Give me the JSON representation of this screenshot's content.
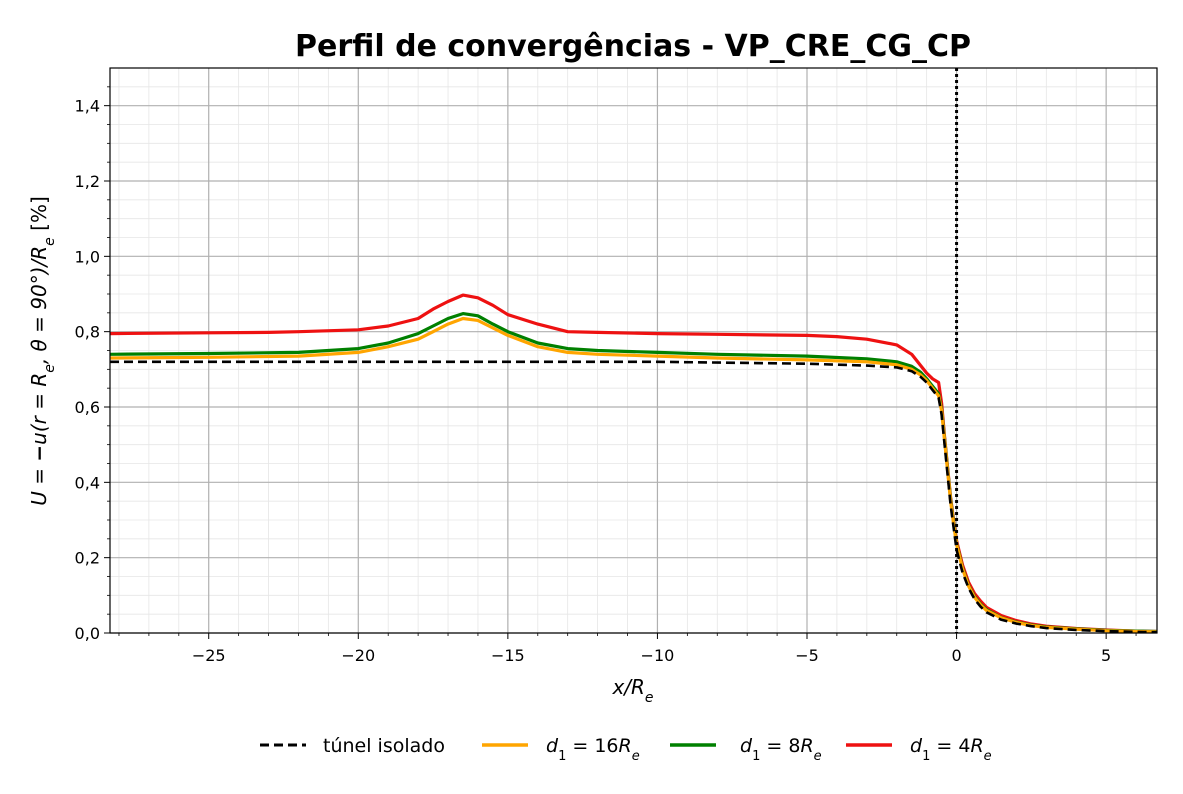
{
  "chart_data": {
    "type": "line",
    "title": "Perfil de convergências - VP_CRE_CG_CP",
    "xlabel": "x/R_e",
    "ylabel": "U = −u(r = R_e, θ = 90°)/R_e [%]",
    "xlim": [
      -28.3,
      6.7
    ],
    "ylim": [
      0.0,
      1.5
    ],
    "x_ticks": [
      -25,
      -20,
      -15,
      -10,
      -5,
      0,
      5
    ],
    "x_tick_labels": [
      "−25",
      "−20",
      "−15",
      "−10",
      "−5",
      "0",
      "5"
    ],
    "y_ticks": [
      0.0,
      0.2,
      0.4,
      0.6,
      0.8,
      1.0,
      1.2,
      1.4
    ],
    "y_tick_labels": [
      "0,0",
      "0,2",
      "0,4",
      "0,6",
      "0,8",
      "1,0",
      "1,2",
      "1,4"
    ],
    "grid": true,
    "minor_grid": true,
    "vline_x": 0,
    "legend_position": "bottom-center",
    "series": [
      {
        "name": "túnel isolado",
        "color": "#000000",
        "dash": "dashed",
        "x": [
          -28.3,
          -25,
          -20,
          -15,
          -10,
          -5,
          -3,
          -2,
          -1.5,
          -1.2,
          -1.0,
          -0.8,
          -0.6,
          -0.5,
          -0.4,
          -0.3,
          -0.2,
          -0.1,
          0.0,
          0.2,
          0.4,
          0.6,
          0.8,
          1.0,
          1.5,
          2.0,
          2.5,
          3.0,
          4.0,
          5.0,
          6.0,
          6.7
        ],
        "y": [
          0.72,
          0.72,
          0.72,
          0.72,
          0.72,
          0.715,
          0.71,
          0.705,
          0.695,
          0.68,
          0.665,
          0.645,
          0.625,
          0.58,
          0.5,
          0.42,
          0.34,
          0.28,
          0.22,
          0.16,
          0.12,
          0.09,
          0.07,
          0.055,
          0.035,
          0.025,
          0.018,
          0.013,
          0.008,
          0.005,
          0.003,
          0.002
        ]
      },
      {
        "name": "d_1 = 16R_e",
        "color": "#ffa500",
        "dash": "solid",
        "x": [
          -28.3,
          -25,
          -22,
          -20,
          -19,
          -18,
          -17.5,
          -17,
          -16.5,
          -16,
          -15.5,
          -15,
          -14,
          -13,
          -12,
          -10,
          -8,
          -5,
          -3,
          -2,
          -1.5,
          -1.2,
          -1.0,
          -0.8,
          -0.6,
          -0.5,
          -0.4,
          -0.3,
          -0.2,
          -0.1,
          0.0,
          0.2,
          0.4,
          0.6,
          0.8,
          1.0,
          1.5,
          2.0,
          2.5,
          3.0,
          4.0,
          5.0,
          6.0,
          6.7
        ],
        "y": [
          0.73,
          0.732,
          0.735,
          0.745,
          0.76,
          0.78,
          0.8,
          0.82,
          0.835,
          0.83,
          0.81,
          0.79,
          0.76,
          0.745,
          0.74,
          0.735,
          0.73,
          0.725,
          0.72,
          0.712,
          0.7,
          0.685,
          0.67,
          0.65,
          0.63,
          0.59,
          0.51,
          0.43,
          0.35,
          0.29,
          0.235,
          0.17,
          0.125,
          0.095,
          0.075,
          0.06,
          0.04,
          0.028,
          0.02,
          0.015,
          0.01,
          0.006,
          0.004,
          0.003
        ]
      },
      {
        "name": "d_1 = 8R_e",
        "color": "#008000",
        "dash": "solid",
        "x": [
          -28.3,
          -25,
          -22,
          -20,
          -19,
          -18,
          -17.5,
          -17,
          -16.5,
          -16,
          -15.5,
          -15,
          -14,
          -13,
          -12,
          -10,
          -8,
          -5,
          -3,
          -2,
          -1.5,
          -1.2,
          -1.0,
          -0.8,
          -0.6,
          -0.5,
          -0.4,
          -0.3,
          -0.2,
          -0.1,
          0.0,
          0.2,
          0.4,
          0.6,
          0.8,
          1.0,
          1.5,
          2.0,
          2.5,
          3.0,
          4.0,
          5.0,
          6.0,
          6.7
        ],
        "y": [
          0.74,
          0.742,
          0.745,
          0.755,
          0.77,
          0.795,
          0.815,
          0.835,
          0.848,
          0.842,
          0.82,
          0.8,
          0.77,
          0.755,
          0.75,
          0.745,
          0.74,
          0.735,
          0.728,
          0.72,
          0.708,
          0.692,
          0.675,
          0.655,
          0.635,
          0.595,
          0.515,
          0.435,
          0.355,
          0.295,
          0.238,
          0.172,
          0.127,
          0.097,
          0.077,
          0.062,
          0.041,
          0.029,
          0.021,
          0.016,
          0.011,
          0.007,
          0.005,
          0.004
        ]
      },
      {
        "name": "d_1 = 4R_e",
        "color": "#ee1111",
        "dash": "solid",
        "x": [
          -28.3,
          -25,
          -23,
          -22,
          -20,
          -19,
          -18,
          -17.5,
          -17,
          -16.5,
          -16,
          -15.5,
          -15,
          -14,
          -13,
          -12,
          -10,
          -8,
          -5,
          -4,
          -3,
          -2,
          -1.5,
          -1.2,
          -1.0,
          -0.8,
          -0.6,
          -0.5,
          -0.4,
          -0.3,
          -0.2,
          -0.1,
          0.0,
          0.2,
          0.4,
          0.6,
          0.8,
          1.0,
          1.5,
          2.0,
          2.5,
          3.0,
          4.0,
          5.0,
          6.0,
          6.7
        ],
        "y": [
          0.795,
          0.797,
          0.798,
          0.8,
          0.805,
          0.815,
          0.835,
          0.86,
          0.88,
          0.897,
          0.89,
          0.87,
          0.845,
          0.82,
          0.8,
          0.798,
          0.795,
          0.793,
          0.79,
          0.787,
          0.78,
          0.765,
          0.74,
          0.71,
          0.69,
          0.675,
          0.665,
          0.61,
          0.52,
          0.44,
          0.36,
          0.3,
          0.245,
          0.18,
          0.135,
          0.105,
          0.085,
          0.068,
          0.046,
          0.033,
          0.024,
          0.018,
          0.012,
          0.008,
          0.005,
          0.004
        ]
      }
    ]
  },
  "legend": {
    "items": [
      {
        "label": "túnel isolado",
        "color": "#000000",
        "dash": "dashed"
      },
      {
        "label_var": "d",
        "label_sub": "1",
        "label_rest": " = 16",
        "label_var2": "R",
        "label_sub2": "e",
        "color": "#ffa500",
        "dash": "solid"
      },
      {
        "label_var": "d",
        "label_sub": "1",
        "label_rest": " = 8",
        "label_var2": "R",
        "label_sub2": "e",
        "color": "#008000",
        "dash": "solid"
      },
      {
        "label_var": "d",
        "label_sub": "1",
        "label_rest": " = 4",
        "label_var2": "R",
        "label_sub2": "e",
        "color": "#ee1111",
        "dash": "solid"
      }
    ]
  }
}
